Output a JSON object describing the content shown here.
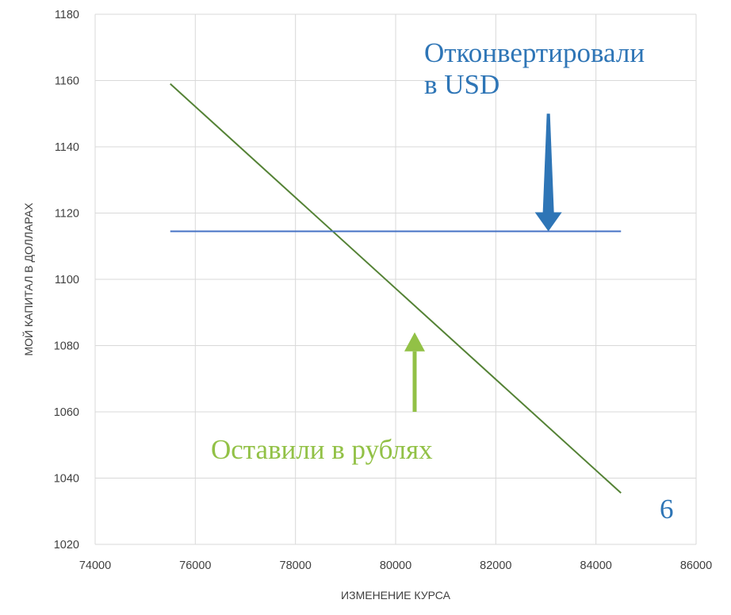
{
  "chart_data": {
    "type": "line",
    "xlabel": "ИЗМЕНЕНИЕ КУРСА",
    "ylabel": "МОЙ КАПИТАЛ В ДОЛЛАРАХ",
    "xlim": [
      74000,
      86000
    ],
    "ylim": [
      1020,
      1180
    ],
    "xticks": [
      "74000",
      "76000",
      "78000",
      "80000",
      "82000",
      "84000",
      "86000"
    ],
    "yticks": [
      "1020",
      "1040",
      "1060",
      "1080",
      "1100",
      "1120",
      "1140",
      "1160",
      "1180"
    ],
    "grid": true,
    "series": [
      {
        "color": "#548235",
        "x": [
          75500,
          84500
        ],
        "y": [
          1159,
          1035.5
        ]
      },
      {
        "color": "#4472c4",
        "x": [
          75500,
          84500
        ],
        "y": [
          1114.5,
          1114.5
        ]
      }
    ],
    "annotations": [
      {
        "lines": [
          "Отконвертировали",
          "в USD"
        ],
        "color": "#2e75b6",
        "arrow": "down",
        "arrow_x": 83050,
        "arrow_from_y": 1150,
        "arrow_to_y": 1114.5
      },
      {
        "lines": [
          "Оставили в рублях"
        ],
        "color": "#92c146",
        "arrow": "up",
        "arrow_x": 80380,
        "arrow_from_y": 1060,
        "arrow_to_y": 1084
      }
    ],
    "corner_label": "6",
    "corner_label_color": "#2e75b6"
  }
}
